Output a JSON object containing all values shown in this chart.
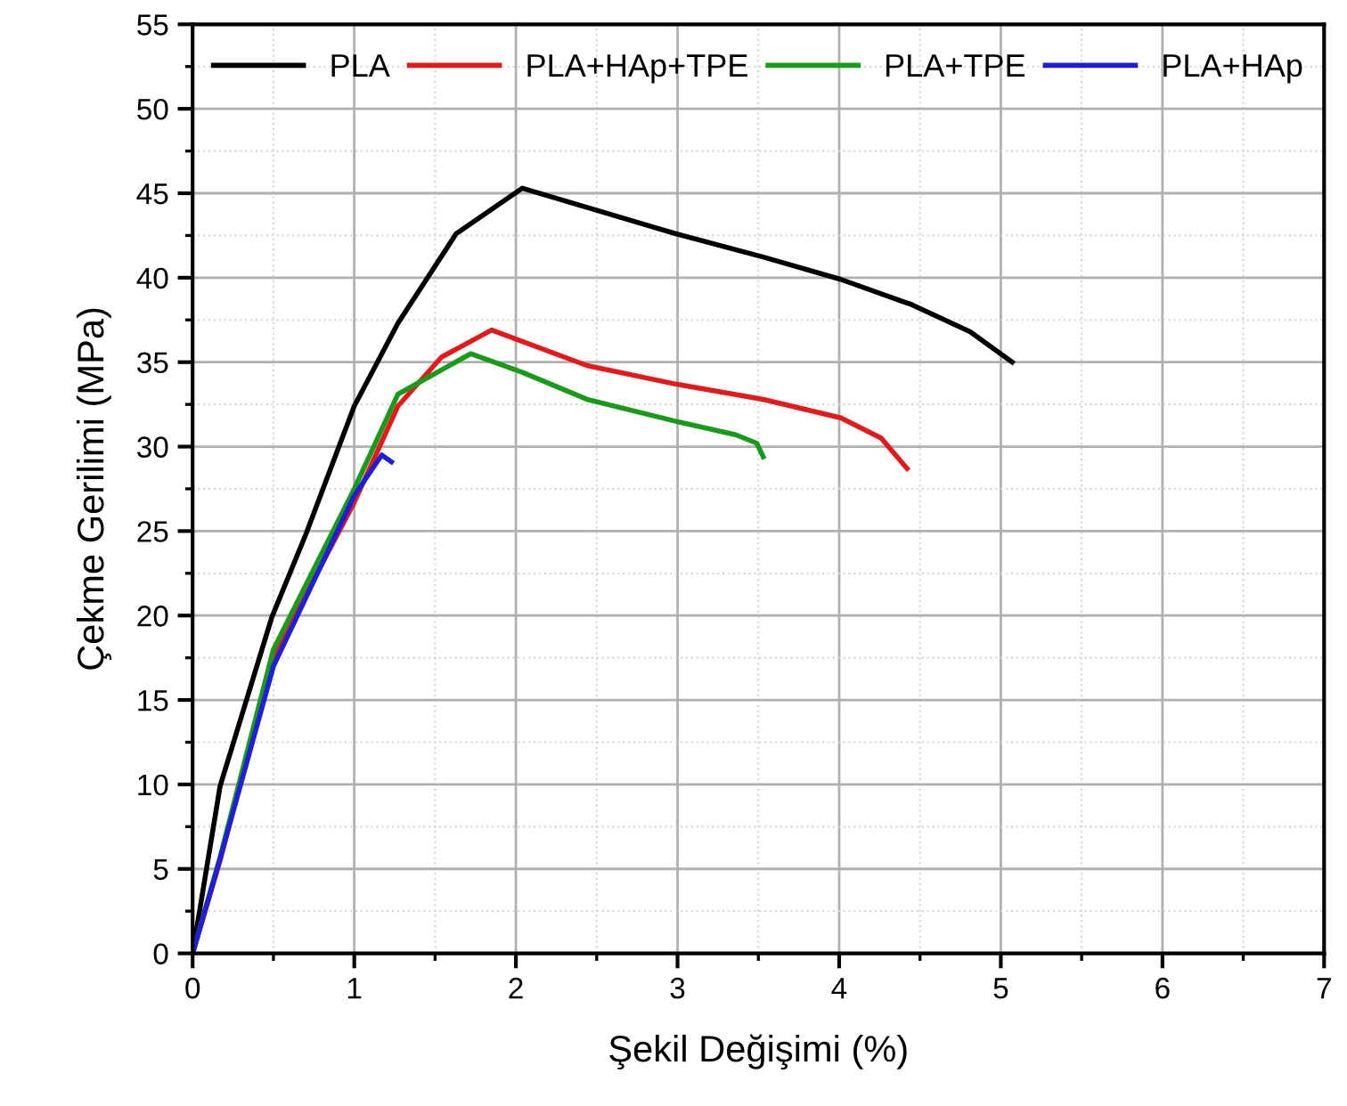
{
  "chart_data": {
    "type": "line",
    "xlabel": "Şekil Değişimi (%)",
    "ylabel": "Çekme Gerilimi (MPa)",
    "xlim": [
      0,
      7
    ],
    "ylim": [
      0,
      55
    ],
    "xticks": [
      0,
      1,
      2,
      3,
      4,
      5,
      6,
      7
    ],
    "yticks": [
      0,
      5,
      10,
      15,
      20,
      25,
      30,
      35,
      40,
      45,
      50,
      55
    ],
    "grid": true,
    "legend": "top",
    "marker": "none",
    "line_style": "solid",
    "series": [
      {
        "name": "PLA",
        "color": "#000000",
        "x": [
          0,
          0.17,
          0.49,
          0.7,
          1.0,
          1.27,
          1.63,
          2.04,
          2.99,
          3.54,
          4.01,
          4.45,
          4.81,
          5.07
        ],
        "values": [
          0,
          9.9,
          19.9,
          24.8,
          32.4,
          37.3,
          42.6,
          45.3,
          42.6,
          41.2,
          39.9,
          38.4,
          36.8,
          35.0
        ]
      },
      {
        "name": "PLA+HAp+TPE",
        "color": "#e31a1c",
        "x": [
          0,
          0.17,
          0.49,
          1.0,
          1.27,
          1.54,
          1.85,
          2.44,
          2.99,
          3.53,
          4.01,
          4.26,
          4.42
        ],
        "values": [
          0,
          5.5,
          17.4,
          26.7,
          32.4,
          35.3,
          36.9,
          34.8,
          33.7,
          32.8,
          31.7,
          30.5,
          28.7
        ]
      },
      {
        "name": "PLA+TPE",
        "color": "#1a9a1a",
        "x": [
          0,
          0.17,
          0.5,
          1.0,
          1.27,
          1.72,
          2.04,
          2.44,
          2.99,
          3.36,
          3.49,
          3.53
        ],
        "values": [
          0,
          5.7,
          18.0,
          27.5,
          33.1,
          35.5,
          34.4,
          32.8,
          31.5,
          30.7,
          30.2,
          29.4
        ]
      },
      {
        "name": "PLA+HAp",
        "color": "#1f1fd6",
        "x": [
          0,
          0.17,
          0.5,
          1.0,
          1.17,
          1.23
        ],
        "values": [
          0,
          5.6,
          17.0,
          27.1,
          29.5,
          29.1
        ]
      }
    ]
  }
}
